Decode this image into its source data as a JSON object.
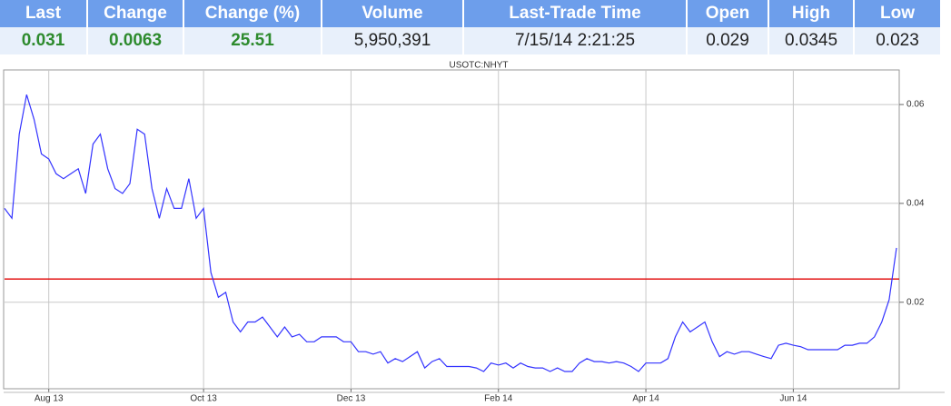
{
  "table": {
    "header": [
      "Last",
      "Change",
      "Change (%)",
      "Volume",
      "Last-Trade Time",
      "Open",
      "High",
      "Low"
    ],
    "rows": [
      [
        "0.031",
        "0.0063",
        "25.51",
        "5,950,391",
        "7/15/14 2:21:25",
        "0.029",
        "0.0345",
        "0.023"
      ]
    ]
  },
  "chart_data": {
    "type": "line",
    "title": "USOTC:NHYT",
    "color": "#3333ff",
    "categories": [
      null,
      null,
      null,
      null,
      null,
      null,
      "Aug 13",
      null,
      null,
      null,
      null,
      null,
      null,
      null,
      null,
      null,
      null,
      null,
      null,
      null,
      null,
      null,
      null,
      null,
      null,
      null,
      null,
      "Oct 13",
      null,
      null,
      null,
      null,
      null,
      null,
      null,
      null,
      null,
      null,
      null,
      null,
      null,
      null,
      null,
      null,
      null,
      null,
      null,
      "Dec 13",
      null,
      null,
      null,
      null,
      null,
      null,
      null,
      null,
      null,
      null,
      null,
      null,
      null,
      null,
      null,
      null,
      null,
      null,
      null,
      "Feb 14",
      null,
      null,
      null,
      null,
      null,
      null,
      null,
      null,
      null,
      null,
      null,
      null,
      null,
      null,
      null,
      null,
      null,
      null,
      null,
      "Apr 14",
      null,
      null,
      null,
      null,
      null,
      null,
      null,
      null,
      null,
      null,
      null,
      null,
      null,
      null,
      null,
      null,
      null,
      null,
      null,
      "Jun 14",
      null,
      null,
      null,
      null,
      null,
      null,
      null,
      null,
      null,
      null,
      null,
      null,
      null,
      null
    ],
    "values": [
      0.039,
      0.037,
      0.054,
      0.062,
      0.057,
      0.05,
      0.049,
      0.046,
      0.045,
      0.046,
      0.047,
      0.042,
      0.052,
      0.054,
      0.047,
      0.043,
      0.042,
      0.044,
      0.055,
      0.054,
      0.043,
      0.037,
      0.043,
      0.039,
      0.039,
      0.045,
      0.037,
      0.039,
      0.026,
      0.021,
      0.022,
      0.016,
      0.014,
      0.016,
      0.016,
      0.017,
      0.015,
      0.013,
      0.015,
      0.013,
      0.0135,
      0.012,
      0.012,
      0.013,
      0.013,
      0.013,
      0.012,
      0.012,
      0.01,
      0.01,
      0.0095,
      0.01,
      0.0077,
      0.0086,
      0.008,
      0.009,
      0.01,
      0.0067,
      0.008,
      0.0086,
      0.007,
      0.007,
      0.007,
      0.007,
      0.0067,
      0.006,
      0.0077,
      0.0073,
      0.0077,
      0.0067,
      0.0077,
      0.007,
      0.0067,
      0.0067,
      0.006,
      0.0067,
      0.006,
      0.006,
      0.0077,
      0.0086,
      0.008,
      0.008,
      0.0077,
      0.008,
      0.0077,
      0.007,
      0.006,
      0.0077,
      0.0077,
      0.0077,
      0.0086,
      0.013,
      0.016,
      0.014,
      0.015,
      0.016,
      0.012,
      0.009,
      0.01,
      0.0095,
      0.01,
      0.01,
      0.0095,
      0.009,
      0.0086,
      0.0113,
      0.0117,
      0.0113,
      0.011,
      0.0104,
      0.0104,
      0.0104,
      0.0104,
      0.0104,
      0.0113,
      0.0113,
      0.0117,
      0.0117,
      0.013,
      0.016,
      0.0205,
      0.031
    ],
    "reference_line": {
      "value": 0.0247,
      "color": "#e00000"
    },
    "ylim": [
      0.0025,
      0.067
    ],
    "yticks": [
      0.02,
      0.04,
      0.06
    ],
    "grid": true
  }
}
